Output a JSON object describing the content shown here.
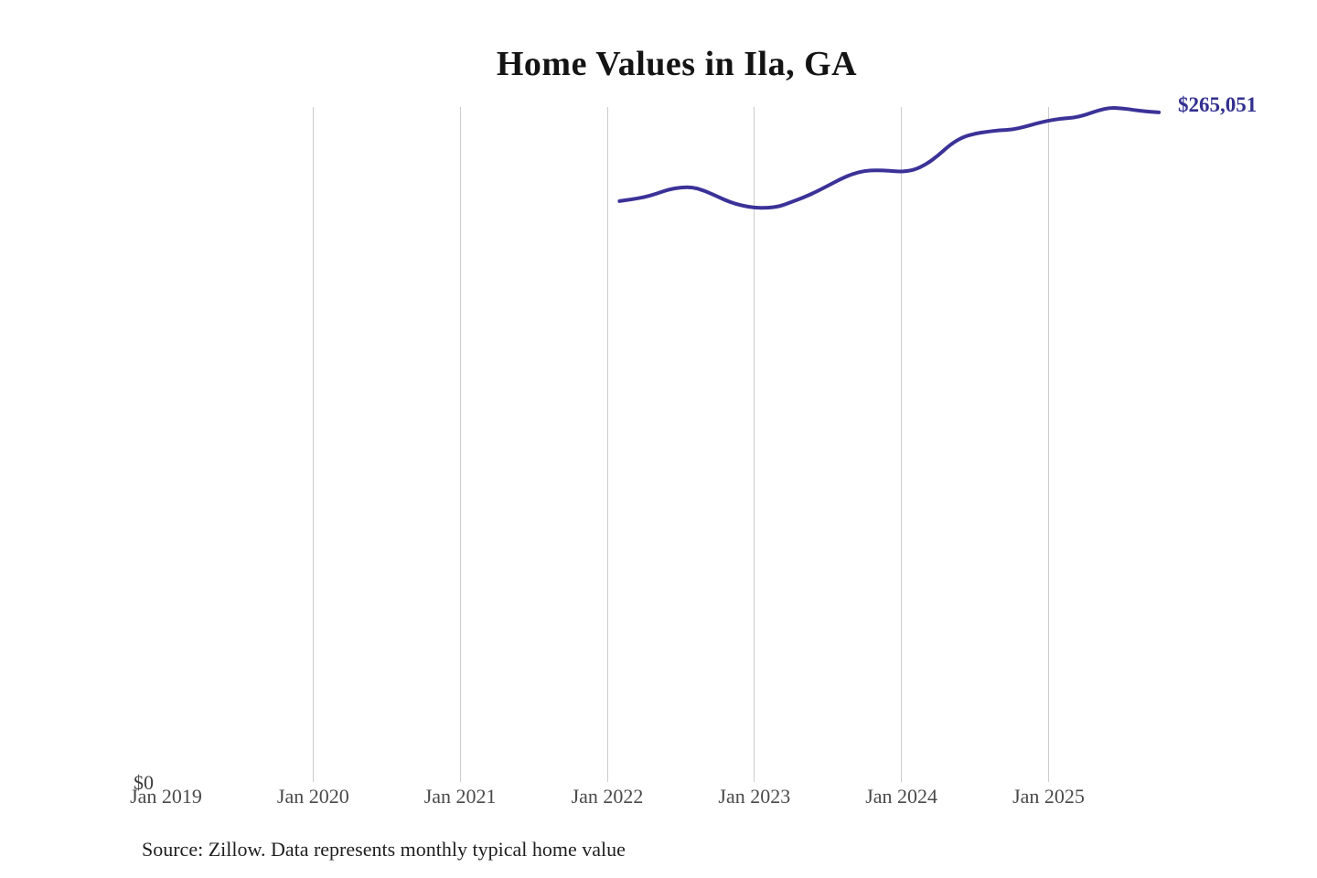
{
  "title": "Home Values in Ila, GA",
  "end_label": "$265,051",
  "source_note": "Source: Zillow. Data represents monthly typical home value",
  "y_axis": {
    "zero_label": "$0"
  },
  "x_axis": {
    "tick_labels": [
      "Jan 2019",
      "Jan 2020",
      "Jan 2021",
      "Jan 2022",
      "Jan 2023",
      "Jan 2024",
      "Jan 2025"
    ]
  },
  "colors": {
    "line": "#3b3298",
    "end_label_text": "#333090",
    "grid": "#cccccc",
    "axis_text": "#4a4a4a",
    "title_text": "#141414",
    "source_text": "#1f1f1f",
    "background": "#ffffff"
  },
  "chart_data": {
    "type": "line",
    "title": "Home Values in Ila, GA",
    "series_name": "Typical home value ($)",
    "x": [
      "2022-02",
      "2022-03",
      "2022-04",
      "2022-05",
      "2022-06",
      "2022-07",
      "2022-08",
      "2022-09",
      "2022-10",
      "2022-11",
      "2022-12",
      "2023-01",
      "2023-02",
      "2023-03",
      "2023-04",
      "2023-05",
      "2023-06",
      "2023-07",
      "2023-08",
      "2023-09",
      "2023-10",
      "2023-11",
      "2023-12",
      "2024-01",
      "2024-02",
      "2024-03",
      "2024-04",
      "2024-05",
      "2024-06",
      "2024-07",
      "2024-08",
      "2024-09",
      "2024-10",
      "2024-11",
      "2024-12",
      "2025-01",
      "2025-02",
      "2025-03",
      "2025-04",
      "2025-05",
      "2025-06",
      "2025-07",
      "2025-08",
      "2025-09",
      "2025-10"
    ],
    "values": [
      229900,
      230600,
      231400,
      232800,
      234500,
      235400,
      235400,
      233900,
      231700,
      229500,
      228100,
      227300,
      227200,
      227700,
      229500,
      231300,
      233500,
      236000,
      238600,
      240700,
      241900,
      242200,
      241900,
      241500,
      242200,
      244400,
      248000,
      252400,
      255300,
      256700,
      257400,
      258000,
      258200,
      259300,
      260700,
      261800,
      262600,
      262900,
      264000,
      265800,
      266900,
      266700,
      266000,
      265400,
      265051
    ],
    "last_value": 265051,
    "last_value_label": "$265,051",
    "xlabel": "",
    "ylabel": "",
    "ylim": [
      0,
      267200
    ],
    "x_window": [
      "2019-01",
      "2025-12"
    ],
    "grid": "vertical-yearly",
    "legend": "none",
    "annotations": [
      {
        "text": "$265,051",
        "attach": "last-point"
      },
      {
        "text": "$0",
        "attach": "y-axis-zero"
      }
    ]
  }
}
